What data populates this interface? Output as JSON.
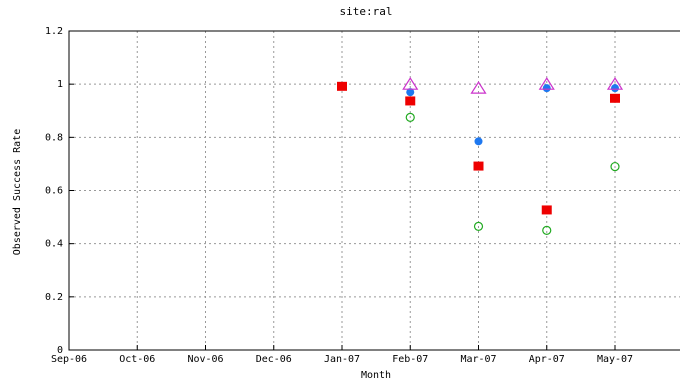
{
  "chart_data": {
    "type": "scatter",
    "title": "site:ral",
    "xlabel": "Month",
    "ylabel": "Observed Success Rate",
    "categories": [
      "Sep-06",
      "Oct-06",
      "Nov-06",
      "Dec-06",
      "Jan-07",
      "Feb-07",
      "Mar-07",
      "Apr-07",
      "May-07"
    ],
    "y_ticks": [
      "0",
      "0.2",
      "0.4",
      "0.6",
      "0.8",
      "1",
      "1.2"
    ],
    "ylim": [
      0,
      1.2
    ],
    "grid": true,
    "series": [
      {
        "marker": "square",
        "color": "#ee0000",
        "values": [
          null,
          null,
          null,
          null,
          0.99,
          0.935,
          0.69,
          0.525,
          0.945
        ]
      },
      {
        "marker": "circle",
        "color": "#1e78f0",
        "values": [
          null,
          null,
          null,
          null,
          null,
          0.97,
          0.785,
          0.985,
          0.985
        ]
      },
      {
        "marker": "triangle",
        "color": "#cc33cc",
        "values": [
          null,
          null,
          null,
          null,
          null,
          1.0,
          0.985,
          1.0,
          1.0
        ]
      },
      {
        "marker": "open-circle",
        "color": "#22aa22",
        "values": [
          null,
          null,
          null,
          null,
          null,
          0.875,
          0.465,
          0.45,
          0.69
        ]
      }
    ]
  }
}
